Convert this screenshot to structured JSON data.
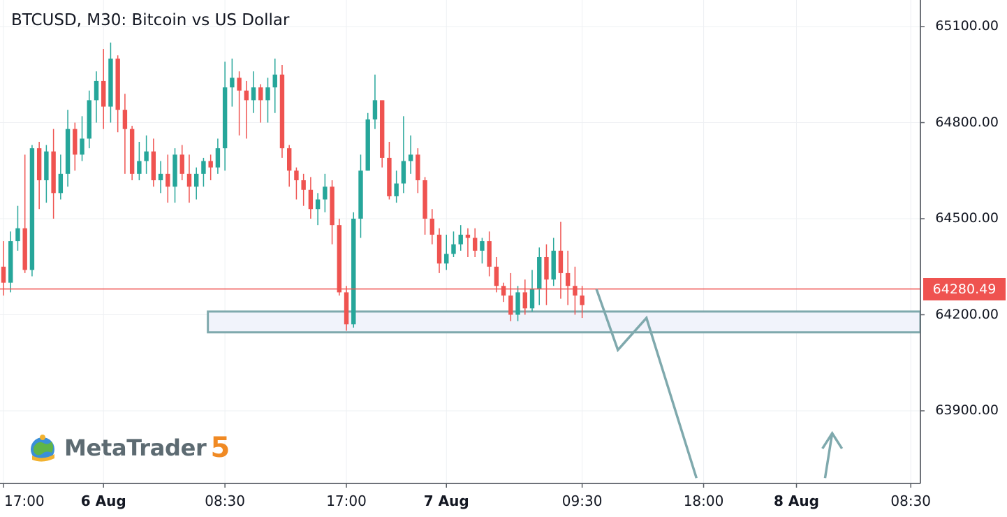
{
  "title": "BTCUSD, M30: Bitcoin vs US Dollar",
  "logo": {
    "text": "MetaTrader",
    "version": "5",
    "icon": "metatrader-globe-icon"
  },
  "colors": {
    "up": "#26a69a",
    "down": "#ef5350",
    "zone": "#7fa9ad",
    "zone_fill": "#f1f3fb",
    "arrow": "#7fa9ad",
    "grid": "#eef0f3"
  },
  "chart_data": {
    "type": "candlestick",
    "symbol": "BTCUSD",
    "timeframe": "M30",
    "y_ticks": [
      "65100.00",
      "64800.00",
      "64500.00",
      "64200.00",
      "63900.00"
    ],
    "ylim": [
      63700,
      65250
    ],
    "current_price": "64280.49",
    "x_ticks": [
      {
        "label": "17:00",
        "bold": false,
        "slot": 0
      },
      {
        "label": "6 Aug",
        "bold": true,
        "slot": 14
      },
      {
        "label": "08:30",
        "bold": false,
        "slot": 31
      },
      {
        "label": "17:00",
        "bold": false,
        "slot": 48
      },
      {
        "label": "7 Aug",
        "bold": true,
        "slot": 62
      },
      {
        "label": "09:30",
        "bold": false,
        "slot": 81
      },
      {
        "label": "18:00",
        "bold": false,
        "slot": 98
      },
      {
        "label": "8 Aug",
        "bold": true,
        "slot": 111
      },
      {
        "label": "08:30",
        "bold": false,
        "slot": 127
      }
    ],
    "candles": [
      [
        64350,
        64300,
        64430,
        64260
      ],
      [
        64300,
        64430,
        64460,
        64270
      ],
      [
        64430,
        64470,
        64540,
        64400
      ],
      [
        64470,
        64340,
        64700,
        64330
      ],
      [
        64340,
        64720,
        64730,
        64320
      ],
      [
        64720,
        64620,
        64740,
        64530
      ],
      [
        64620,
        64710,
        64730,
        64550
      ],
      [
        64710,
        64580,
        64780,
        64500
      ],
      [
        64580,
        64640,
        64700,
        64560
      ],
      [
        64640,
        64780,
        64840,
        64600
      ],
      [
        64780,
        64700,
        64800,
        64650
      ],
      [
        64700,
        64750,
        64820,
        64680
      ],
      [
        64750,
        64870,
        64900,
        64720
      ],
      [
        64870,
        64930,
        64960,
        64800
      ],
      [
        64930,
        64850,
        65030,
        64780
      ],
      [
        64850,
        65000,
        65050,
        64800
      ],
      [
        65000,
        64840,
        65010,
        64770
      ],
      [
        64840,
        64780,
        64890,
        64640
      ],
      [
        64780,
        64640,
        64790,
        64620
      ],
      [
        64640,
        64680,
        64740,
        64620
      ],
      [
        64680,
        64710,
        64760,
        64640
      ],
      [
        64710,
        64620,
        64750,
        64600
      ],
      [
        64620,
        64640,
        64680,
        64580
      ],
      [
        64640,
        64600,
        64700,
        64550
      ],
      [
        64600,
        64700,
        64720,
        64550
      ],
      [
        64700,
        64640,
        64730,
        64620
      ],
      [
        64640,
        64600,
        64700,
        64550
      ],
      [
        64600,
        64640,
        64660,
        64560
      ],
      [
        64640,
        64680,
        64690,
        64600
      ],
      [
        64680,
        64660,
        64700,
        64620
      ],
      [
        64660,
        64720,
        64750,
        64640
      ],
      [
        64720,
        64910,
        64990,
        64650
      ],
      [
        64910,
        64940,
        65000,
        64850
      ],
      [
        64940,
        64900,
        64960,
        64760
      ],
      [
        64900,
        64870,
        64930,
        64750
      ],
      [
        64870,
        64910,
        64960,
        64830
      ],
      [
        64910,
        64870,
        64920,
        64800
      ],
      [
        64870,
        64910,
        64940,
        64800
      ],
      [
        64910,
        64950,
        65000,
        64830
      ],
      [
        64950,
        64720,
        64980,
        64690
      ],
      [
        64720,
        64650,
        64730,
        64600
      ],
      [
        64650,
        64620,
        64660,
        64560
      ],
      [
        64620,
        64590,
        64640,
        64540
      ],
      [
        64590,
        64530,
        64630,
        64500
      ],
      [
        64530,
        64560,
        64580,
        64480
      ],
      [
        64560,
        64600,
        64640,
        64520
      ],
      [
        64600,
        64480,
        64620,
        64420
      ],
      [
        64480,
        64270,
        64500,
        64260
      ],
      [
        64270,
        64170,
        64290,
        64150
      ],
      [
        64170,
        64500,
        64520,
        64160
      ],
      [
        64500,
        64650,
        64700,
        64440
      ],
      [
        64650,
        64810,
        64830,
        64650
      ],
      [
        64810,
        64870,
        64950,
        64780
      ],
      [
        64870,
        64690,
        64870,
        64660
      ],
      [
        64690,
        64570,
        64740,
        64560
      ],
      [
        64570,
        64610,
        64650,
        64550
      ],
      [
        64610,
        64680,
        64820,
        64580
      ],
      [
        64680,
        64700,
        64760,
        64640
      ],
      [
        64700,
        64620,
        64720,
        64580
      ],
      [
        64620,
        64500,
        64630,
        64450
      ],
      [
        64500,
        64450,
        64530,
        64420
      ],
      [
        64450,
        64360,
        64470,
        64330
      ],
      [
        64360,
        64390,
        64450,
        64340
      ],
      [
        64390,
        64420,
        64460,
        64380
      ],
      [
        64420,
        64450,
        64480,
        64400
      ],
      [
        64450,
        64440,
        64470,
        64380
      ],
      [
        64440,
        64400,
        64470,
        64380
      ],
      [
        64400,
        64430,
        64440,
        64360
      ],
      [
        64430,
        64350,
        64460,
        64320
      ],
      [
        64350,
        64290,
        64380,
        64270
      ],
      [
        64290,
        64260,
        64300,
        64240
      ],
      [
        64260,
        64200,
        64330,
        64180
      ],
      [
        64200,
        64270,
        64290,
        64180
      ],
      [
        64270,
        64220,
        64310,
        64200
      ],
      [
        64220,
        64280,
        64340,
        64210
      ],
      [
        64280,
        64380,
        64410,
        64230
      ],
      [
        64380,
        64310,
        64420,
        64230
      ],
      [
        64310,
        64400,
        64440,
        64290
      ],
      [
        64400,
        64330,
        64490,
        64250
      ],
      [
        64330,
        64290,
        64400,
        64230
      ],
      [
        64290,
        64260,
        64350,
        64200
      ],
      [
        64260,
        64230,
        64290,
        64190
      ]
    ],
    "zone": {
      "top": 64210,
      "bottom": 64145,
      "start_slot": 29
    },
    "arrows": [
      {
        "points": [
          [
            83,
            64280
          ],
          [
            86,
            64090
          ],
          [
            90,
            64190
          ],
          [
            97,
            63690
          ]
        ]
      },
      {
        "points": [
          [
            115,
            63690
          ],
          [
            116,
            63830
          ]
        ]
      }
    ]
  }
}
